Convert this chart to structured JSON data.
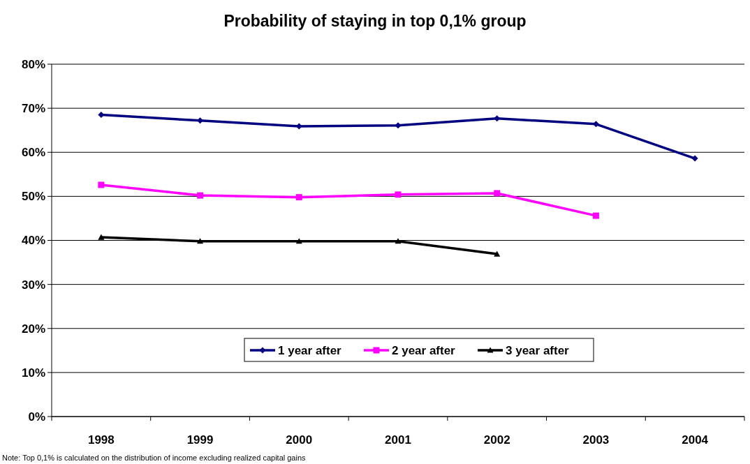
{
  "chart_data": {
    "type": "line",
    "title": "Probability of staying in top 0,1% group",
    "categories": [
      "1998",
      "1999",
      "2000",
      "2001",
      "2002",
      "2003",
      "2004"
    ],
    "series": [
      {
        "name": "1 year after",
        "color": "#000080",
        "marker": "diamond",
        "values": [
          68.5,
          67.2,
          65.9,
          66.1,
          67.7,
          66.4,
          58.6
        ]
      },
      {
        "name": "2 year after",
        "color": "#ff00ff",
        "marker": "square",
        "values": [
          52.6,
          50.2,
          49.8,
          50.4,
          50.7,
          45.6,
          null
        ]
      },
      {
        "name": "3 year after",
        "color": "#000000",
        "marker": "triangle",
        "values": [
          40.7,
          39.8,
          39.8,
          39.8,
          36.9,
          null,
          null
        ]
      }
    ],
    "ylim": [
      0,
      80
    ],
    "yticks": [
      {
        "value": 0,
        "label": "0%"
      },
      {
        "value": 10,
        "label": "10%"
      },
      {
        "value": 20,
        "label": "20%"
      },
      {
        "value": 30,
        "label": "30%"
      },
      {
        "value": 40,
        "label": "40%"
      },
      {
        "value": 50,
        "label": "50%"
      },
      {
        "value": 60,
        "label": "60%"
      },
      {
        "value": 70,
        "label": "70%"
      },
      {
        "value": 80,
        "label": "80%"
      }
    ],
    "grid": "y",
    "legend": "bottom",
    "line_style": "solid",
    "annotations": [
      "Note: Top 0,1% is calculated on the distribution of income excluding realized capital gains"
    ]
  }
}
